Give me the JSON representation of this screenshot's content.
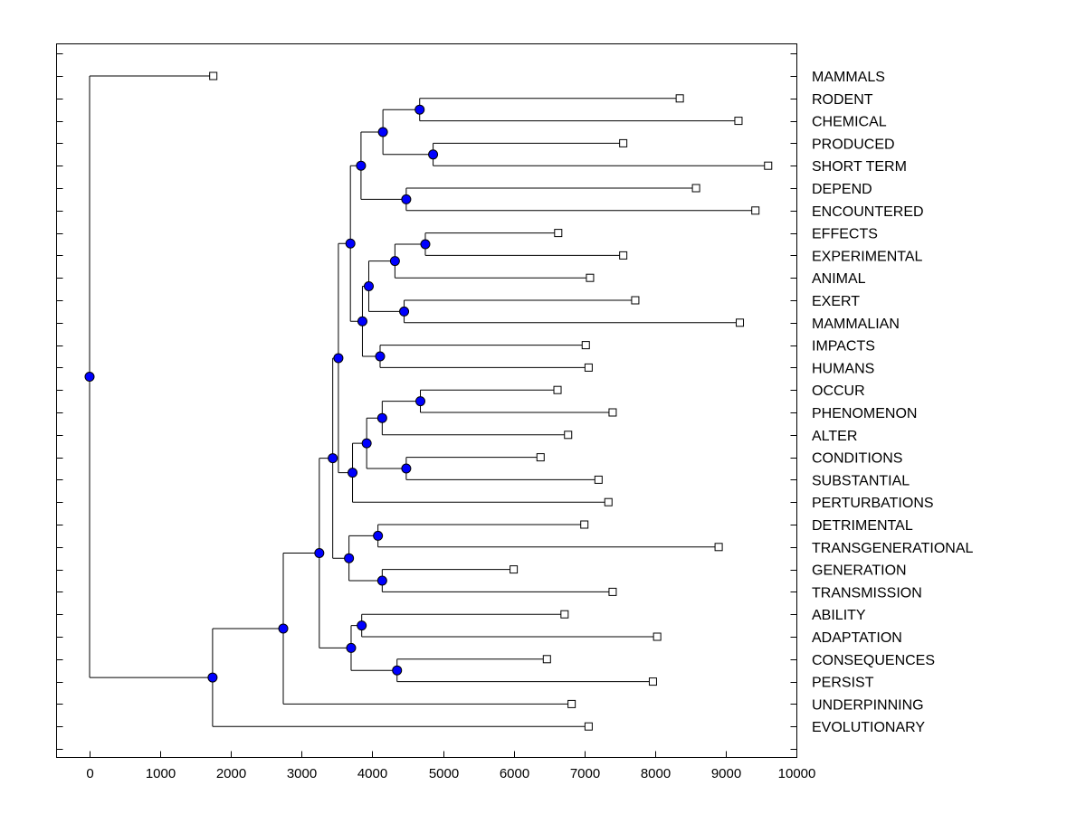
{
  "colors": {
    "node_fill": "#0000ff",
    "line": "#000000",
    "background": "#ffffff",
    "leaf_marker_fill": "#ffffff"
  },
  "chart_data": {
    "type": "dendrogram",
    "xlim": [
      -500,
      10000
    ],
    "x_ticks": [
      0,
      1000,
      2000,
      3000,
      4000,
      5000,
      6000,
      7000,
      8000,
      9000,
      10000
    ],
    "x_tick_labels": [
      "0",
      "1000",
      "2000",
      "3000",
      "4000",
      "5000",
      "6000",
      "7000",
      "8000",
      "9000",
      "10000"
    ],
    "leaves": [
      {
        "label": "MAMMALS",
        "value": 1750
      },
      {
        "label": "RODENT",
        "value": 8350
      },
      {
        "label": "CHEMICAL",
        "value": 9180
      },
      {
        "label": "PRODUCED",
        "value": 7550
      },
      {
        "label": "SHORT TERM",
        "value": 9600
      },
      {
        "label": "DEPEND",
        "value": 8580
      },
      {
        "label": "ENCOUNTERED",
        "value": 9420
      },
      {
        "label": "EFFECTS",
        "value": 6630
      },
      {
        "label": "EXPERIMENTAL",
        "value": 7550
      },
      {
        "label": "ANIMAL",
        "value": 7080
      },
      {
        "label": "EXERT",
        "value": 7720
      },
      {
        "label": "MAMMALIAN",
        "value": 9200
      },
      {
        "label": "IMPACTS",
        "value": 7020
      },
      {
        "label": "HUMANS",
        "value": 7060
      },
      {
        "label": "OCCUR",
        "value": 6620
      },
      {
        "label": "PHENOMENON",
        "value": 7400
      },
      {
        "label": "ALTER",
        "value": 6770
      },
      {
        "label": "CONDITIONS",
        "value": 6380
      },
      {
        "label": "SUBSTANTIAL",
        "value": 7200
      },
      {
        "label": "PERTURBATIONS",
        "value": 7340
      },
      {
        "label": "DETRIMENTAL",
        "value": 7000
      },
      {
        "label": "TRANSGENERATIONAL",
        "value": 8900
      },
      {
        "label": "GENERATION",
        "value": 6000
      },
      {
        "label": "TRANSMISSION",
        "value": 7400
      },
      {
        "label": "ABILITY",
        "value": 6720
      },
      {
        "label": "ADAPTATION",
        "value": 8030
      },
      {
        "label": "CONSEQUENCES",
        "value": 6470
      },
      {
        "label": "PERSIST",
        "value": 7970
      },
      {
        "label": "UNDERPINNING",
        "value": 6820
      },
      {
        "label": "EVOLUTIONARY",
        "value": 7060
      }
    ],
    "merges": [
      {
        "id": "n1",
        "height": 4670,
        "children": [
          1,
          2
        ]
      },
      {
        "id": "n2",
        "height": 4860,
        "children": [
          3,
          4
        ]
      },
      {
        "id": "n3",
        "height": 4150,
        "children": [
          "n1",
          "n2"
        ]
      },
      {
        "id": "n4",
        "height": 4480,
        "children": [
          5,
          6
        ]
      },
      {
        "id": "n5",
        "height": 3840,
        "children": [
          "n3",
          "n4"
        ]
      },
      {
        "id": "n6",
        "height": 4750,
        "children": [
          7,
          8
        ]
      },
      {
        "id": "n7",
        "height": 4320,
        "children": [
          "n6",
          9
        ]
      },
      {
        "id": "n8",
        "height": 4450,
        "children": [
          10,
          11
        ]
      },
      {
        "id": "n9",
        "height": 3950,
        "children": [
          "n7",
          "n8"
        ]
      },
      {
        "id": "n10",
        "height": 4110,
        "children": [
          12,
          13
        ]
      },
      {
        "id": "n11",
        "height": 3860,
        "children": [
          "n9",
          "n10"
        ]
      },
      {
        "id": "n12",
        "height": 3690,
        "children": [
          "n5",
          "n11"
        ]
      },
      {
        "id": "n13",
        "height": 4680,
        "children": [
          14,
          15
        ]
      },
      {
        "id": "n14",
        "height": 4140,
        "children": [
          "n13",
          16
        ]
      },
      {
        "id": "n15",
        "height": 4480,
        "children": [
          17,
          18
        ]
      },
      {
        "id": "n16",
        "height": 3920,
        "children": [
          "n14",
          "n15"
        ]
      },
      {
        "id": "n17",
        "height": 3720,
        "children": [
          "n16",
          19
        ]
      },
      {
        "id": "n18",
        "height": 3520,
        "children": [
          "n12",
          "n17"
        ]
      },
      {
        "id": "n19",
        "height": 4080,
        "children": [
          20,
          21
        ]
      },
      {
        "id": "n20",
        "height": 4140,
        "children": [
          22,
          23
        ]
      },
      {
        "id": "n21",
        "height": 3670,
        "children": [
          "n19",
          "n20"
        ]
      },
      {
        "id": "n22",
        "height": 3440,
        "children": [
          "n18",
          "n21"
        ]
      },
      {
        "id": "n23",
        "height": 3850,
        "children": [
          24,
          25
        ]
      },
      {
        "id": "n24",
        "height": 4350,
        "children": [
          26,
          27
        ]
      },
      {
        "id": "n25",
        "height": 3700,
        "children": [
          "n23",
          "n24"
        ]
      },
      {
        "id": "n26",
        "height": 3250,
        "children": [
          "n22",
          "n25"
        ]
      },
      {
        "id": "n27",
        "height": 2740,
        "children": [
          "n26",
          28
        ]
      },
      {
        "id": "n28",
        "height": 1740,
        "children": [
          "n27",
          29
        ]
      },
      {
        "id": "n29",
        "height": 0,
        "children": [
          0,
          "n28"
        ]
      }
    ]
  }
}
